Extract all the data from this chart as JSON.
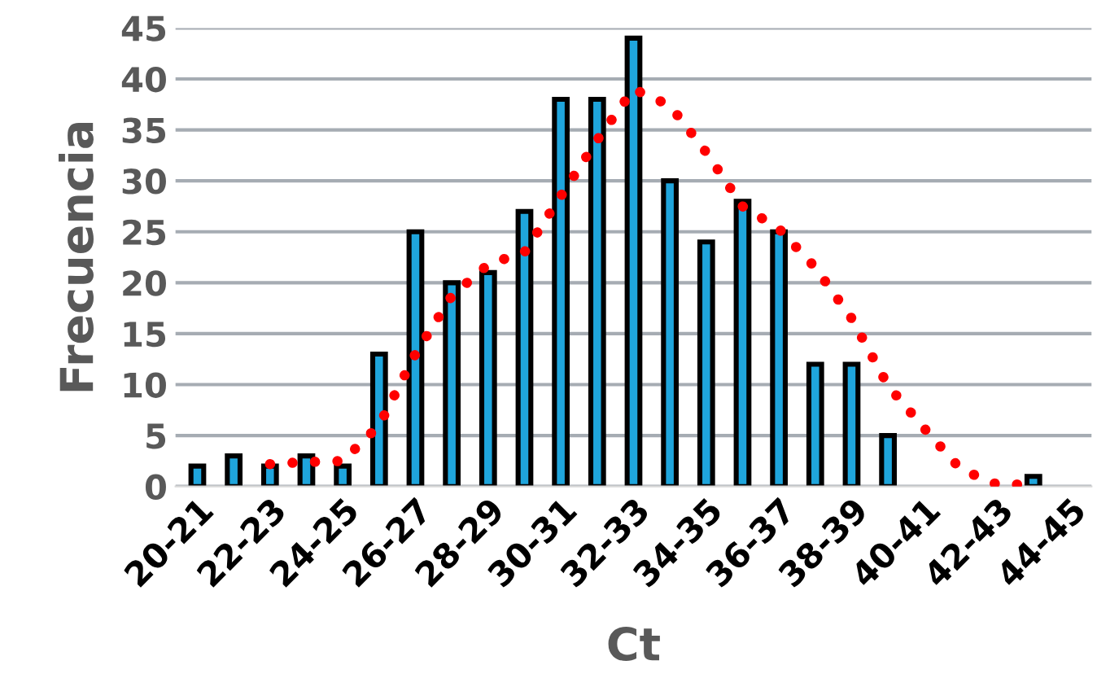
{
  "chart_data": {
    "type": "bar",
    "xlabel": "Ct",
    "ylabel": "Frecuencia",
    "categories": [
      "20-21",
      null,
      "22-23",
      null,
      "24-25",
      null,
      "26-27",
      null,
      "28-29",
      null,
      "30-31",
      null,
      "32-33",
      null,
      "34-35",
      null,
      "36-37",
      null,
      "38-39",
      null,
      "40-41",
      null,
      "42-43",
      null,
      "44-45"
    ],
    "series": [
      {
        "color": "#1fa5dc",
        "values": [
          2,
          3,
          2,
          3,
          2,
          13,
          25,
          20,
          21,
          27,
          38,
          38,
          44,
          30,
          24,
          28,
          25,
          12,
          12,
          5,
          0,
          0,
          0,
          1,
          0
        ]
      },
      {
        "type": "line",
        "color": "#ff0000",
        "line_style": "dotted",
        "values": [
          null,
          null,
          2.2,
          2.4,
          2.5,
          6.0,
          13,
          18.7,
          21.8,
          23.0,
          28.5,
          34.0,
          39.0,
          37.4,
          32.8,
          27.5,
          25.3,
          21.5,
          16.5,
          9.9,
          5.7,
          1.7,
          0.2,
          0.2,
          null
        ]
      }
    ],
    "ylim": [
      0,
      45
    ],
    "yticks": [
      0,
      5,
      10,
      15,
      20,
      25,
      30,
      35,
      40,
      45
    ],
    "grid": "y",
    "legend": false
  }
}
